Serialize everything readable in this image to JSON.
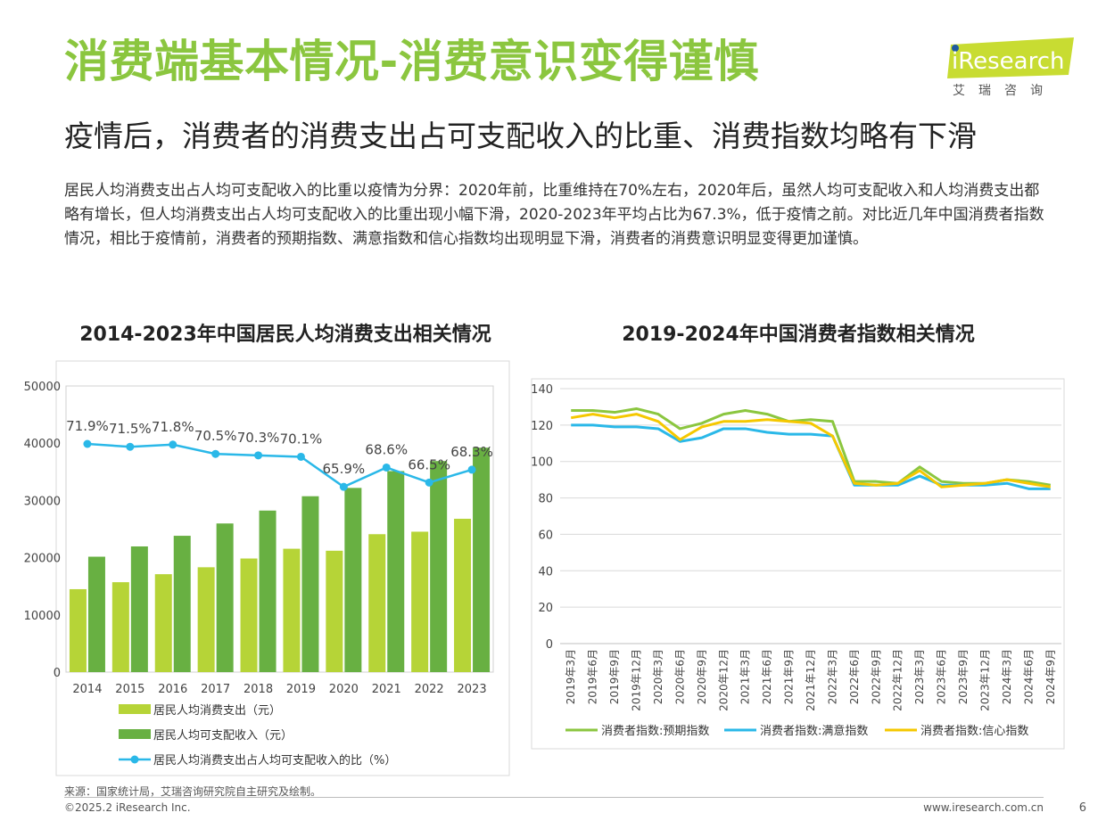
{
  "header": {
    "title": "消费端基本情况-消费意识变得谨慎",
    "subtitle": "疫情后，消费者的消费支出占可支配收入的比重、消费指数均略有下滑",
    "body": "居民人均消费支出占人均可支配收入的比重以疫情为分界：2020年前，比重维持在70%左右，2020年后，虽然人均可支配收入和人均消费支出都略有增长，但人均消费支出占人均可支配收入的比重出现小幅下滑，2020-2023年平均占比为67.3%，低于疫情之前。对比近几年中国消费者指数情况，相比于疫情前，消费者的预期指数、满意指数和信心指数均出现明显下滑，消费者的消费意识明显变得更加谨慎。"
  },
  "logo": {
    "text": "iResearch",
    "subtext": "艾瑞咨询",
    "color": "#c8dc32",
    "dot_color": "#1e5aa0"
  },
  "footer": {
    "source": "来源：国家统计局，艾瑞咨询研究院自主研究及绘制。",
    "copyright": "©2025.2 iResearch Inc.",
    "website": "www.iresearch.com.cn",
    "page": "6"
  },
  "colors": {
    "title_green": "#8bc63f",
    "light_green": "#b6d437",
    "dark_green": "#68b042",
    "blue": "#2ab8e8",
    "yellow": "#f5c800"
  },
  "chart_data": [
    {
      "type": "bar",
      "title": "2014-2023年中国居民人均消费支出相关情况",
      "categories": [
        "2014",
        "2015",
        "2016",
        "2017",
        "2018",
        "2019",
        "2020",
        "2021",
        "2022",
        "2023"
      ],
      "ylim": [
        0,
        50000
      ],
      "yticks": [
        "0",
        "10000",
        "20000",
        "30000",
        "40000",
        "50000"
      ],
      "grid": false,
      "legend_position": "bottom",
      "series": [
        {
          "name": "居民人均消费支出（元）",
          "type": "bar",
          "color": "#b6d437",
          "values": [
            14491,
            15712,
            17111,
            18322,
            19853,
            21559,
            21210,
            24100,
            24538,
            26796
          ]
        },
        {
          "name": "居民人均可支配收入（元）",
          "type": "bar",
          "color": "#68b042",
          "values": [
            20167,
            21966,
            23821,
            25974,
            28228,
            30733,
            32189,
            35128,
            36883,
            39218
          ]
        },
        {
          "name": "居民人均消费支出占人均可支配收入的比（%）",
          "type": "line",
          "color": "#2ab8e8",
          "values": [
            71.9,
            71.5,
            71.8,
            70.5,
            70.3,
            70.1,
            65.9,
            68.6,
            66.5,
            68.3
          ],
          "labels": [
            "71.9%",
            "71.5%",
            "71.8%",
            "70.5%",
            "70.3%",
            "70.1%",
            "65.9%",
            "68.6%",
            "66.5%",
            "68.3%"
          ]
        }
      ]
    },
    {
      "type": "line",
      "title": "2019-2024年中国消费者指数相关情况",
      "categories": [
        "2019年3月",
        "2019年6月",
        "2019年9月",
        "2019年12月",
        "2020年3月",
        "2020年6月",
        "2020年9月",
        "2020年12月",
        "2021年3月",
        "2021年6月",
        "2021年9月",
        "2021年12月",
        "2022年3月",
        "2022年6月",
        "2022年9月",
        "2022年12月",
        "2023年3月",
        "2023年6月",
        "2023年9月",
        "2023年12月",
        "2024年3月",
        "2024年6月",
        "2024年9月"
      ],
      "ylim": [
        0,
        140
      ],
      "yticks": [
        "0",
        "20",
        "40",
        "60",
        "80",
        "100",
        "120",
        "140"
      ],
      "grid": true,
      "legend_position": "bottom",
      "series": [
        {
          "name": "消费者指数:预期指数",
          "color": "#8bc63f",
          "values": [
            128,
            128,
            127,
            129,
            126,
            118,
            121,
            126,
            128,
            126,
            122,
            123,
            122,
            89,
            89,
            88,
            97,
            89,
            88,
            88,
            90,
            89,
            87
          ]
        },
        {
          "name": "消费者指数:满意指数",
          "color": "#2ab8e8",
          "values": [
            120,
            120,
            119,
            119,
            118,
            111,
            113,
            118,
            118,
            116,
            115,
            115,
            114,
            87,
            87,
            87,
            92,
            87,
            87,
            87,
            88,
            85,
            85
          ]
        },
        {
          "name": "消费者指数:信心指数",
          "color": "#f5c800",
          "values": [
            124,
            126,
            124,
            126,
            122,
            112,
            119,
            122,
            122,
            123,
            122,
            121,
            114,
            88,
            87,
            88,
            95,
            86,
            87,
            88,
            90,
            88,
            86
          ]
        }
      ]
    }
  ]
}
